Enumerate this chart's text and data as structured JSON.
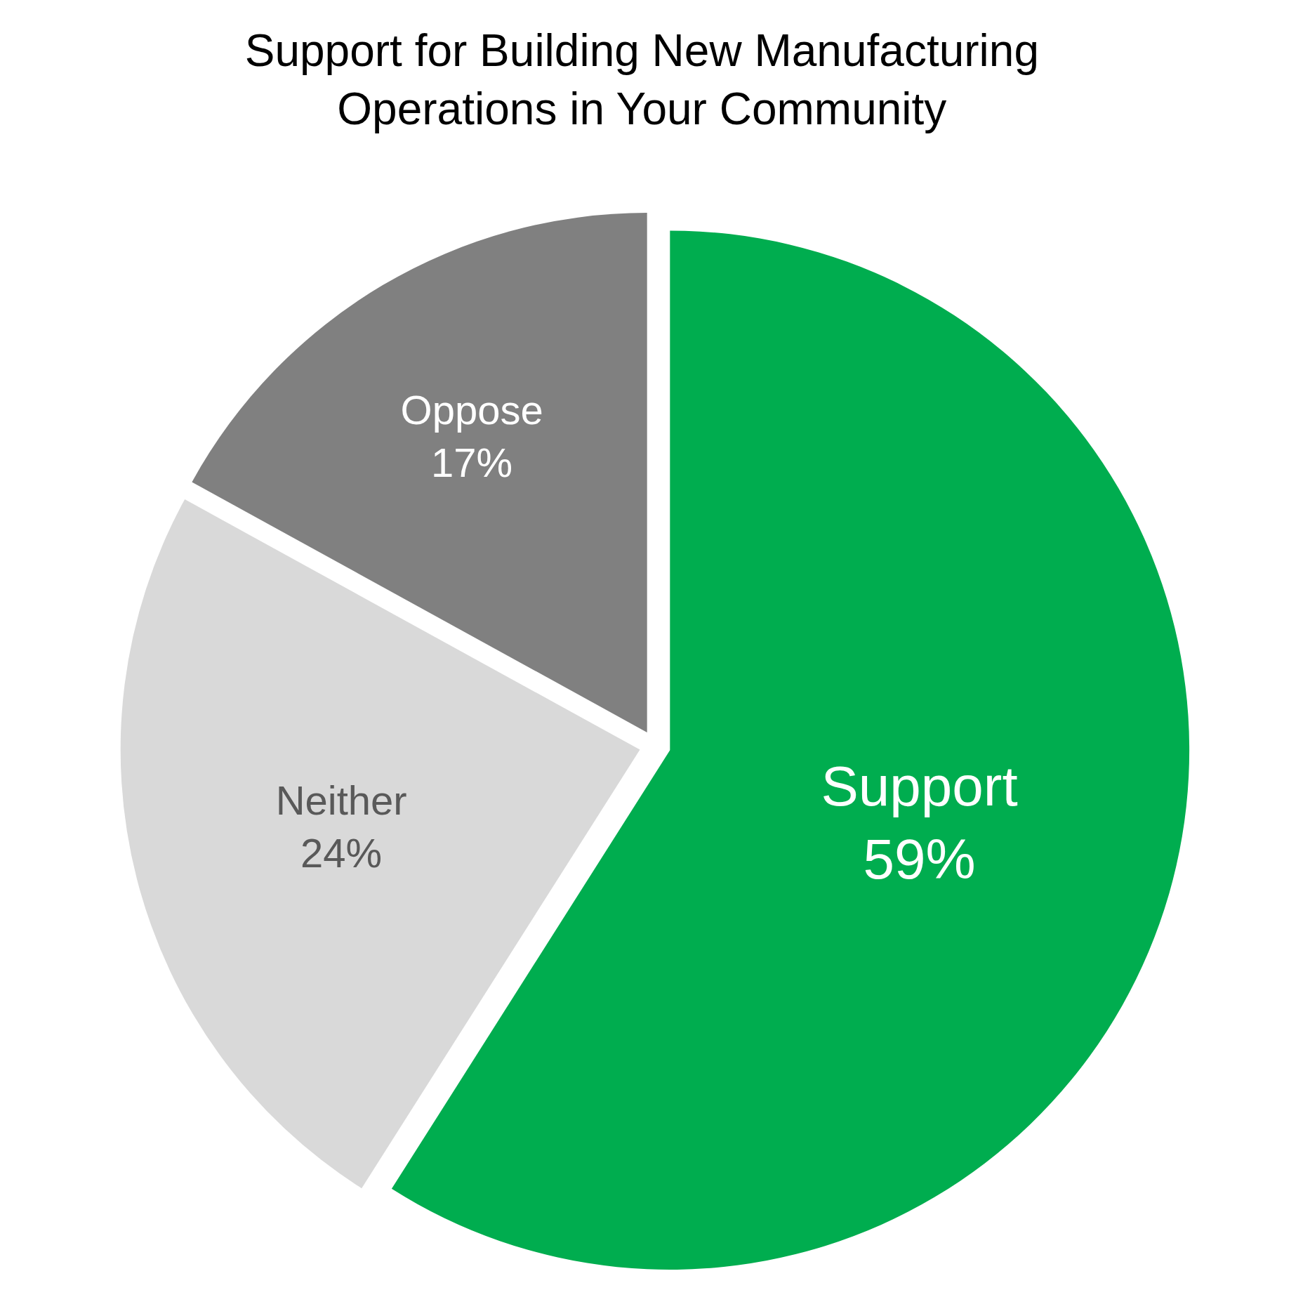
{
  "chart_data": {
    "type": "pie",
    "title": "Support for Building New Manufacturing Operations in Your Community",
    "categories": [
      "Support",
      "Neither",
      "Oppose"
    ],
    "values": [
      59,
      24,
      17
    ],
    "value_labels": [
      "59%",
      "24%",
      "17%"
    ],
    "colors": [
      "#00ad4f",
      "#d9d9d9",
      "#808080"
    ]
  }
}
